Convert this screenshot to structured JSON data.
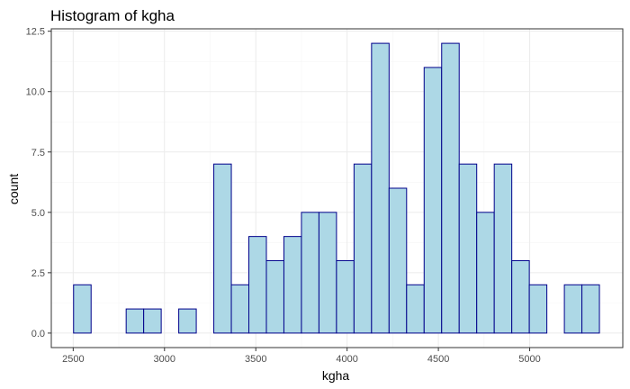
{
  "chart_data": {
    "type": "bar",
    "title": "Histogram of kgha",
    "xlabel": "kgha",
    "ylabel": "count",
    "bin_width": 96,
    "bins": [
      {
        "x0": 2502,
        "x1": 2598,
        "count": 2
      },
      {
        "x0": 2598,
        "x1": 2694,
        "count": 0
      },
      {
        "x0": 2694,
        "x1": 2790,
        "count": 0
      },
      {
        "x0": 2790,
        "x1": 2886,
        "count": 1
      },
      {
        "x0": 2886,
        "x1": 2982,
        "count": 1
      },
      {
        "x0": 2982,
        "x1": 3078,
        "count": 0
      },
      {
        "x0": 3078,
        "x1": 3174,
        "count": 1
      },
      {
        "x0": 3174,
        "x1": 3270,
        "count": 0
      },
      {
        "x0": 3270,
        "x1": 3366,
        "count": 7
      },
      {
        "x0": 3366,
        "x1": 3462,
        "count": 2
      },
      {
        "x0": 3462,
        "x1": 3558,
        "count": 4
      },
      {
        "x0": 3558,
        "x1": 3654,
        "count": 3
      },
      {
        "x0": 3654,
        "x1": 3750,
        "count": 4
      },
      {
        "x0": 3750,
        "x1": 3846,
        "count": 5
      },
      {
        "x0": 3846,
        "x1": 3942,
        "count": 5
      },
      {
        "x0": 3942,
        "x1": 4038,
        "count": 3
      },
      {
        "x0": 4038,
        "x1": 4134,
        "count": 7
      },
      {
        "x0": 4134,
        "x1": 4230,
        "count": 12
      },
      {
        "x0": 4230,
        "x1": 4326,
        "count": 6
      },
      {
        "x0": 4326,
        "x1": 4422,
        "count": 2
      },
      {
        "x0": 4422,
        "x1": 4518,
        "count": 11
      },
      {
        "x0": 4518,
        "x1": 4614,
        "count": 12
      },
      {
        "x0": 4614,
        "x1": 4710,
        "count": 7
      },
      {
        "x0": 4710,
        "x1": 4806,
        "count": 5
      },
      {
        "x0": 4806,
        "x1": 4902,
        "count": 7
      },
      {
        "x0": 4902,
        "x1": 4998,
        "count": 3
      },
      {
        "x0": 4998,
        "x1": 5094,
        "count": 2
      },
      {
        "x0": 5094,
        "x1": 5190,
        "count": 0
      },
      {
        "x0": 5190,
        "x1": 5286,
        "count": 2
      },
      {
        "x0": 5286,
        "x1": 5382,
        "count": 2
      }
    ],
    "xlim": [
      2380,
      5510
    ],
    "ylim": [
      -0.6,
      12.6
    ],
    "x_ticks": [
      2500,
      3000,
      3500,
      4000,
      4500,
      5000
    ],
    "x_tick_labels": [
      "2500",
      "3000",
      "3500",
      "4000",
      "4500",
      "5000"
    ],
    "y_ticks": [
      0,
      2.5,
      5,
      7.5,
      10,
      12.5
    ],
    "y_tick_labels": [
      "0.0",
      "2.5",
      "5.0",
      "7.5",
      "10.0",
      "12.5"
    ],
    "grid": true,
    "colors": {
      "bar_fill": "#add8e6",
      "bar_stroke": "#00008b",
      "grid_major": "#ebebeb",
      "grid_minor": "#f5f5f5",
      "panel_border": "#333333",
      "tick_text": "#4d4d4d"
    }
  }
}
